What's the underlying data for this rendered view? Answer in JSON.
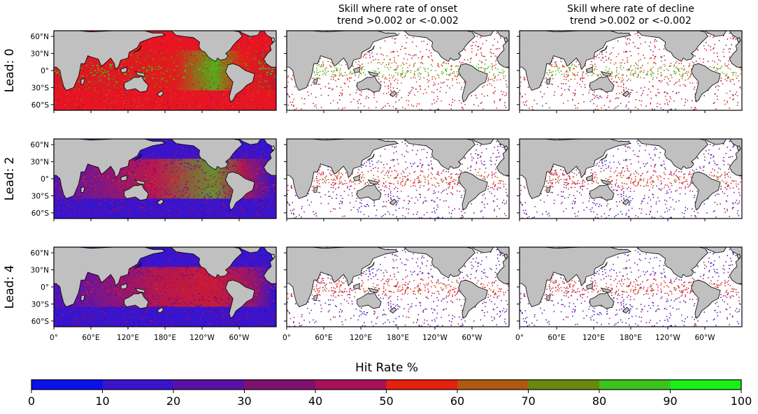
{
  "columns": [
    {
      "title_line1": "",
      "title_line2": ""
    },
    {
      "title_line1": "Skill where rate of onset",
      "title_line2": "trend >0.002 or <-0.002"
    },
    {
      "title_line1": "Skill where rate of decline",
      "title_line2": "trend >0.002 or <-0.002"
    }
  ],
  "rows": [
    {
      "label": "Lead: 0",
      "lead": 0,
      "fill_level": [
        0.55,
        0.45,
        0.4
      ]
    },
    {
      "label": "Lead: 2",
      "lead": 2,
      "fill_level": [
        0.22,
        0.22,
        0.2
      ]
    },
    {
      "label": "Lead: 4",
      "lead": 4,
      "fill_level": [
        0.18,
        0.18,
        0.16
      ]
    }
  ],
  "lat_ticks": [
    "60°N",
    "30°N",
    "0°",
    "30°S",
    "60°S"
  ],
  "lat_values": [
    60,
    30,
    0,
    -30,
    -60
  ],
  "lon_ticks": [
    "0°",
    "60°E",
    "120°E",
    "180°E",
    "120°W",
    "60°W"
  ],
  "lon_values": [
    0,
    60,
    120,
    180,
    240,
    300
  ],
  "map_extent": {
    "lon": [
      0,
      360
    ],
    "lat": [
      -70,
      70
    ]
  },
  "colorbar": {
    "title": "Hit Rate %",
    "ticks": [
      "0",
      "10",
      "20",
      "30",
      "40",
      "50",
      "60",
      "70",
      "80",
      "90",
      "100"
    ],
    "colors": [
      "#0a10ee",
      "#3a14cc",
      "#5a10a6",
      "#80106e",
      "#a8105a",
      "#e81424",
      "#e8200c",
      "#b05a10",
      "#6a8810",
      "#3cc41c",
      "#18f018"
    ]
  },
  "land_color": "#c0c0c0",
  "ocean_missing_color": "#ffffff"
}
